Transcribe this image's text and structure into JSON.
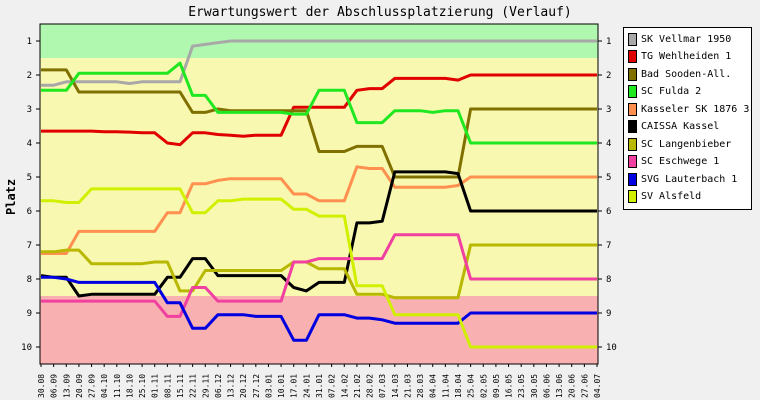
{
  "chart_data": {
    "type": "line",
    "title": "Erwartungswert der Abschlussplatzierung (Verlauf)",
    "ylabel": "Platz",
    "xlabel": "",
    "ylim": [
      10.5,
      0.5
    ],
    "y_ticks": [
      1,
      2,
      3,
      4,
      5,
      6,
      7,
      8,
      9,
      10
    ],
    "grid": false,
    "legend": "right",
    "bands": [
      {
        "from": 0.5,
        "to": 1.5,
        "color": "#b0f8b0"
      },
      {
        "from": 1.5,
        "to": 8.5,
        "color": "#f8f8b0"
      },
      {
        "from": 8.5,
        "to": 10.5,
        "color": "#f8b0b0"
      }
    ],
    "categories": [
      "30.08",
      "06.09",
      "13.09",
      "20.09",
      "27.09",
      "04.10",
      "11.10",
      "18.10",
      "25.10",
      "01.11",
      "08.11",
      "15.11",
      "22.11",
      "29.11",
      "06.12",
      "13.12",
      "20.12",
      "27.12",
      "03.01",
      "10.01",
      "17.01",
      "24.01",
      "31.01",
      "07.02",
      "14.02",
      "21.02",
      "28.02",
      "07.03",
      "14.03",
      "21.03",
      "28.03",
      "04.04",
      "11.04",
      "18.04",
      "25.04",
      "02.05",
      "09.05",
      "16.05",
      "23.05",
      "30.05",
      "06.06",
      "13.06",
      "20.06",
      "27.06",
      "04.07"
    ],
    "series": [
      {
        "name": "SK Vellmar 1950",
        "color": "#a8a8a8",
        "values": [
          2.3,
          2.3,
          2.2,
          2.2,
          2.2,
          2.2,
          2.2,
          2.25,
          2.2,
          2.2,
          2.2,
          2.2,
          1.15,
          1.1,
          1.05,
          1.0,
          1.0,
          1.0,
          1.0,
          1.0,
          1.0,
          1.0,
          1.0,
          1.0,
          1.0,
          1.0,
          1.0,
          1.0,
          1.0,
          1.0,
          1.0,
          1.0,
          1.0,
          1.0,
          1.0,
          1.0,
          1.0,
          1.0,
          1.0,
          1.0,
          1.0,
          1.0,
          1.0,
          1.0,
          1.0
        ]
      },
      {
        "name": "TG Wehlheiden 1",
        "color": "#e00000",
        "values": [
          3.65,
          3.65,
          3.65,
          3.65,
          3.65,
          3.67,
          3.67,
          3.68,
          3.7,
          3.7,
          4.0,
          4.05,
          3.7,
          3.7,
          3.75,
          3.77,
          3.8,
          3.77,
          3.77,
          3.77,
          2.95,
          2.95,
          2.95,
          2.95,
          2.95,
          2.45,
          2.4,
          2.4,
          2.1,
          2.1,
          2.1,
          2.1,
          2.1,
          2.15,
          2.0,
          2.0,
          2.0,
          2.0,
          2.0,
          2.0,
          2.0,
          2.0,
          2.0,
          2.0,
          2.0
        ]
      },
      {
        "name": "Bad Sooden-All.",
        "color": "#807000",
        "values": [
          1.85,
          1.85,
          1.85,
          2.5,
          2.5,
          2.5,
          2.5,
          2.5,
          2.5,
          2.5,
          2.5,
          2.5,
          3.1,
          3.1,
          3.0,
          3.05,
          3.05,
          3.05,
          3.05,
          3.05,
          3.05,
          3.05,
          4.25,
          4.25,
          4.25,
          4.1,
          4.1,
          4.1,
          5.0,
          5.0,
          5.0,
          5.0,
          5.0,
          5.0,
          3.0,
          3.0,
          3.0,
          3.0,
          3.0,
          3.0,
          3.0,
          3.0,
          3.0,
          3.0,
          3.0
        ]
      },
      {
        "name": "SC Fulda 2",
        "color": "#20e820",
        "values": [
          2.45,
          2.45,
          2.45,
          1.95,
          1.95,
          1.95,
          1.95,
          1.95,
          1.95,
          1.95,
          1.95,
          1.65,
          2.6,
          2.6,
          3.1,
          3.1,
          3.1,
          3.1,
          3.1,
          3.1,
          3.15,
          3.15,
          2.45,
          2.45,
          2.45,
          3.4,
          3.4,
          3.4,
          3.05,
          3.05,
          3.05,
          3.1,
          3.05,
          3.05,
          4.0,
          4.0,
          4.0,
          4.0,
          4.0,
          4.0,
          4.0,
          4.0,
          4.0,
          4.0,
          4.0
        ]
      },
      {
        "name": "Kasseler SK 1876 3",
        "color": "#ff9050",
        "values": [
          7.25,
          7.25,
          7.25,
          6.6,
          6.6,
          6.6,
          6.6,
          6.6,
          6.6,
          6.6,
          6.05,
          6.05,
          5.2,
          5.2,
          5.1,
          5.05,
          5.05,
          5.05,
          5.05,
          5.05,
          5.5,
          5.5,
          5.7,
          5.7,
          5.7,
          4.7,
          4.75,
          4.75,
          5.3,
          5.3,
          5.3,
          5.3,
          5.3,
          5.25,
          5.0,
          5.0,
          5.0,
          5.0,
          5.0,
          5.0,
          5.0,
          5.0,
          5.0,
          5.0,
          5.0
        ]
      },
      {
        "name": "CAISSA Kassel",
        "color": "#000000",
        "values": [
          7.9,
          7.95,
          7.95,
          8.5,
          8.45,
          8.45,
          8.45,
          8.45,
          8.45,
          8.45,
          7.95,
          7.95,
          7.4,
          7.4,
          7.9,
          7.9,
          7.9,
          7.9,
          7.9,
          7.9,
          8.25,
          8.35,
          8.1,
          8.1,
          8.1,
          6.35,
          6.35,
          6.3,
          4.85,
          4.85,
          4.85,
          4.85,
          4.85,
          4.9,
          6.0,
          6.0,
          6.0,
          6.0,
          6.0,
          6.0,
          6.0,
          6.0,
          6.0,
          6.0,
          6.0
        ]
      },
      {
        "name": "SC Langenbieber",
        "color": "#b8b800",
        "values": [
          7.2,
          7.2,
          7.15,
          7.15,
          7.55,
          7.55,
          7.55,
          7.55,
          7.55,
          7.5,
          7.5,
          8.35,
          8.35,
          7.75,
          7.75,
          7.75,
          7.75,
          7.75,
          7.75,
          7.75,
          7.5,
          7.5,
          7.7,
          7.7,
          7.7,
          8.45,
          8.45,
          8.45,
          8.55,
          8.55,
          8.55,
          8.55,
          8.55,
          8.55,
          7.0,
          7.0,
          7.0,
          7.0,
          7.0,
          7.0,
          7.0,
          7.0,
          7.0,
          7.0,
          7.0
        ]
      },
      {
        "name": "SC Eschwege 1",
        "color": "#f040a0",
        "values": [
          8.65,
          8.65,
          8.65,
          8.65,
          8.65,
          8.65,
          8.65,
          8.65,
          8.65,
          8.65,
          9.1,
          9.1,
          8.25,
          8.25,
          8.65,
          8.65,
          8.65,
          8.65,
          8.65,
          8.65,
          7.5,
          7.5,
          7.4,
          7.4,
          7.4,
          7.4,
          7.4,
          7.4,
          6.7,
          6.7,
          6.7,
          6.7,
          6.7,
          6.7,
          8.0,
          8.0,
          8.0,
          8.0,
          8.0,
          8.0,
          8.0,
          8.0,
          8.0,
          8.0,
          8.0
        ]
      },
      {
        "name": "SVG Lauterbach 1",
        "color": "#0000e0",
        "values": [
          7.95,
          7.95,
          8.0,
          8.1,
          8.1,
          8.1,
          8.1,
          8.1,
          8.1,
          8.1,
          8.7,
          8.7,
          9.45,
          9.45,
          9.05,
          9.05,
          9.05,
          9.1,
          9.1,
          9.1,
          9.8,
          9.8,
          9.05,
          9.05,
          9.05,
          9.15,
          9.15,
          9.2,
          9.3,
          9.3,
          9.3,
          9.3,
          9.3,
          9.3,
          9.0,
          9.0,
          9.0,
          9.0,
          9.0,
          9.0,
          9.0,
          9.0,
          9.0,
          9.0,
          9.0
        ]
      },
      {
        "name": "SV Alsfeld",
        "color": "#d0f000",
        "values": [
          5.7,
          5.7,
          5.75,
          5.75,
          5.35,
          5.35,
          5.35,
          5.35,
          5.35,
          5.35,
          5.35,
          5.35,
          6.05,
          6.05,
          5.7,
          5.7,
          5.65,
          5.65,
          5.65,
          5.65,
          5.95,
          5.95,
          6.15,
          6.15,
          6.15,
          8.2,
          8.2,
          8.2,
          9.05,
          9.05,
          9.05,
          9.05,
          9.05,
          9.05,
          10.0,
          10.0,
          10.0,
          10.0,
          10.0,
          10.0,
          10.0,
          10.0,
          10.0,
          10.0,
          10.0
        ]
      }
    ]
  }
}
